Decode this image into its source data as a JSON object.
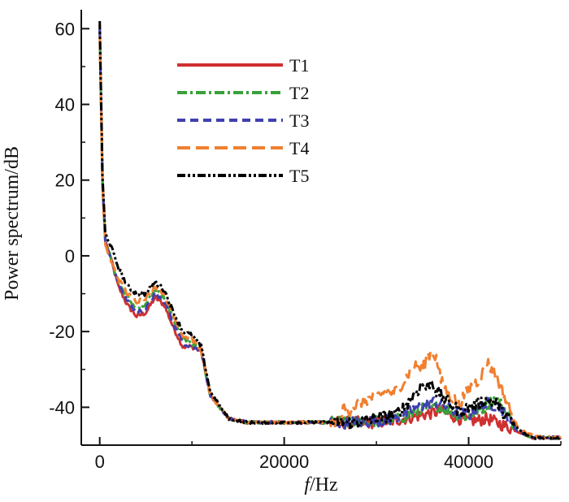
{
  "chart_data": {
    "type": "line",
    "title": "",
    "xlabel_italic": "f",
    "xlabel_rest": "/Hz",
    "ylabel": "Power spectrum/dB",
    "xlim": [
      -2000,
      50000
    ],
    "ylim": [
      -50,
      65
    ],
    "xticks": [
      0,
      20000,
      40000
    ],
    "xtick_labels": [
      "0",
      "20000",
      "40000"
    ],
    "yticks": [
      -40,
      -20,
      0,
      20,
      40,
      60
    ],
    "ytick_labels": [
      "-40",
      "-20",
      "0",
      "20",
      "40",
      "60"
    ],
    "legend_position": "top-center",
    "series": [
      {
        "name": "T1",
        "color": "#d03030",
        "dash": "solid",
        "x": [
          0,
          300,
          600,
          1000,
          2000,
          3000,
          4000,
          5000,
          6000,
          7000,
          8000,
          9000,
          10000,
          11000,
          12000,
          14000,
          16000,
          18000,
          20000,
          22000,
          24000,
          26000,
          28000,
          30000,
          32000,
          33000,
          34000,
          35000,
          36000,
          37000,
          38000,
          39000,
          40000,
          41000,
          42000,
          43000,
          44000,
          45000,
          46000,
          47000,
          48000,
          49000,
          50000
        ],
        "y": [
          61,
          20,
          4,
          1,
          -8,
          -13,
          -16,
          -15,
          -11,
          -13,
          -19,
          -24,
          -24,
          -25,
          -37,
          -43,
          -44,
          -44,
          -44,
          -44,
          -44,
          -44,
          -44,
          -44,
          -43.5,
          -43,
          -42.5,
          -42,
          -41.5,
          -41,
          -42,
          -43,
          -43.5,
          -43.5,
          -43,
          -44,
          -45,
          -46,
          -47,
          -48,
          -48,
          -48,
          -48
        ]
      },
      {
        "name": "T2",
        "color": "#3aa03a",
        "dash": "dashdot",
        "x": [
          0,
          300,
          600,
          1000,
          2000,
          3000,
          4000,
          5000,
          6000,
          7000,
          8000,
          9000,
          10000,
          11000,
          12000,
          14000,
          16000,
          18000,
          20000,
          22000,
          24000,
          26000,
          28000,
          30000,
          32000,
          33000,
          34000,
          35000,
          36000,
          37000,
          38000,
          39000,
          40000,
          41000,
          42000,
          43000,
          44000,
          45000,
          46000,
          47000,
          48000,
          49000,
          50000
        ],
        "y": [
          60,
          19,
          4,
          1,
          -7,
          -11,
          -14,
          -13,
          -9,
          -11,
          -17,
          -22,
          -23,
          -25,
          -37,
          -43,
          -44,
          -44,
          -44,
          -44,
          -44,
          -44,
          -44,
          -43.5,
          -43,
          -42.5,
          -41.5,
          -40.5,
          -40,
          -40,
          -41,
          -42,
          -42.5,
          -41,
          -39.5,
          -37.5,
          -41,
          -45,
          -47,
          -48,
          -48,
          -48,
          -48
        ]
      },
      {
        "name": "T3",
        "color": "#4040b0",
        "dash": "dash",
        "x": [
          0,
          300,
          600,
          1000,
          2000,
          3000,
          4000,
          5000,
          6000,
          7000,
          8000,
          9000,
          10000,
          11000,
          12000,
          14000,
          16000,
          18000,
          20000,
          22000,
          24000,
          26000,
          28000,
          30000,
          32000,
          33000,
          34000,
          35000,
          36000,
          37000,
          38000,
          39000,
          40000,
          41000,
          42000,
          43000,
          44000,
          45000,
          46000,
          47000,
          48000,
          49000,
          50000
        ],
        "y": [
          60,
          19,
          4,
          1,
          -7,
          -12,
          -15,
          -14,
          -10,
          -12,
          -18,
          -23,
          -24,
          -25,
          -37,
          -43,
          -44,
          -44,
          -44,
          -44,
          -44,
          -44,
          -44,
          -43.5,
          -43,
          -42,
          -40.5,
          -39.5,
          -38.5,
          -39,
          -40.5,
          -41.5,
          -42,
          -40.5,
          -39,
          -39.5,
          -42,
          -45.5,
          -47,
          -48,
          -48,
          -48,
          -48
        ]
      },
      {
        "name": "T4",
        "color": "#f08030",
        "dash": "longdash",
        "x": [
          0,
          300,
          600,
          1000,
          2000,
          3000,
          4000,
          5000,
          6000,
          7000,
          8000,
          9000,
          10000,
          11000,
          12000,
          14000,
          16000,
          18000,
          20000,
          22000,
          24000,
          26000,
          26500,
          27000,
          28000,
          29000,
          30000,
          31000,
          32000,
          33000,
          34000,
          35000,
          35500,
          36000,
          36500,
          37000,
          38000,
          39000,
          40000,
          41000,
          41500,
          42000,
          42500,
          43000,
          44000,
          45000,
          46000,
          47000,
          48000,
          49000,
          50000
        ],
        "y": [
          58,
          18,
          3,
          0,
          -6,
          -10,
          -12,
          -11,
          -8,
          -10,
          -16,
          -21,
          -22,
          -25,
          -37,
          -43,
          -44,
          -44,
          -44,
          -44,
          -44,
          -44,
          -40,
          -41,
          -39,
          -38,
          -37,
          -36,
          -36,
          -33,
          -29,
          -30,
          -27,
          -25,
          -27,
          -33,
          -37,
          -39,
          -35,
          -33,
          -31,
          -28,
          -30,
          -32,
          -38,
          -44,
          -46.5,
          -47.5,
          -48,
          -48,
          -48
        ]
      },
      {
        "name": "T5",
        "color": "#000000",
        "dash": "dashdotdot",
        "x": [
          0,
          300,
          600,
          1000,
          2000,
          3000,
          4000,
          5000,
          6000,
          7000,
          8000,
          9000,
          10000,
          11000,
          12000,
          14000,
          16000,
          18000,
          20000,
          22000,
          24000,
          26000,
          28000,
          30000,
          32000,
          33000,
          34000,
          35000,
          35500,
          36000,
          36500,
          37000,
          38000,
          39000,
          40000,
          41000,
          42000,
          43000,
          44000,
          45000,
          46000,
          47000,
          48000,
          49000,
          50000
        ],
        "y": [
          62,
          21,
          6,
          4,
          -3,
          -8,
          -10,
          -10,
          -7,
          -9,
          -15,
          -20,
          -21,
          -24,
          -36,
          -43,
          -44,
          -44,
          -44,
          -44,
          -44,
          -44,
          -44,
          -43,
          -42,
          -40,
          -37,
          -34,
          -35,
          -33,
          -36,
          -37,
          -39,
          -41,
          -40,
          -39,
          -38,
          -39,
          -42,
          -45,
          -47,
          -48,
          -48,
          -48,
          -48
        ]
      }
    ]
  }
}
